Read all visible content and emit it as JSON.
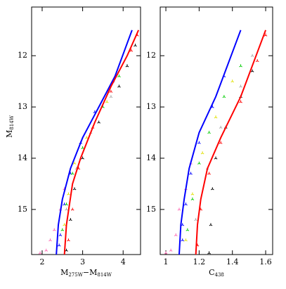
{
  "chart_data": [
    {
      "type": "scatter",
      "xlabel": [
        "M",
        "275W",
        "−M",
        "814W"
      ],
      "ylabel": [
        "M",
        "814W"
      ],
      "xlim": [
        1.74,
        4.43
      ],
      "ylim": [
        11.05,
        15.88
      ],
      "invert_y": true,
      "xticks": [
        2,
        3,
        4
      ],
      "yticks": [
        12,
        13,
        14,
        15
      ],
      "lines": [
        {
          "color": "#0000ff",
          "x": [
            2.35,
            2.4,
            2.5,
            2.7,
            3.0,
            3.4,
            3.8,
            4.22
          ],
          "y": [
            15.88,
            15.3,
            14.8,
            14.2,
            13.6,
            13.0,
            12.4,
            11.5
          ]
        },
        {
          "color": "#ff0000",
          "x": [
            2.55,
            2.6,
            2.75,
            2.95,
            3.3,
            3.7,
            4.1,
            4.38
          ],
          "y": [
            15.88,
            15.3,
            14.5,
            14.0,
            13.3,
            12.6,
            12.0,
            11.5
          ]
        }
      ],
      "series": [
        {
          "color": "#0000ff",
          "x": [
            2.45,
            2.55,
            2.7,
            2.95,
            3.3,
            3.75,
            2.42
          ],
          "y": [
            15.5,
            14.9,
            14.3,
            13.7,
            13.1,
            12.5,
            15.7
          ]
        },
        {
          "color": "#ff69b4",
          "x": [
            2.1,
            2.2,
            2.3,
            2.45,
            2.55,
            1.95
          ],
          "y": [
            15.8,
            15.6,
            15.4,
            15.0,
            14.6,
            15.85
          ]
        },
        {
          "color": "#00cc00",
          "x": [
            2.5,
            2.6,
            2.75,
            3.0,
            3.5,
            3.9
          ],
          "y": [
            15.4,
            14.9,
            14.3,
            13.8,
            13.0,
            12.4
          ]
        },
        {
          "color": "#e0e000",
          "x": [
            2.55,
            2.65,
            2.8,
            3.1,
            3.6
          ],
          "y": [
            15.3,
            14.7,
            14.1,
            13.6,
            12.9
          ]
        },
        {
          "color": "#aaaaaa",
          "x": [
            2.6,
            2.85,
            3.2,
            3.7,
            4.1
          ],
          "y": [
            15.0,
            14.2,
            13.5,
            12.8,
            12.2
          ]
        },
        {
          "color": "#ff0000",
          "x": [
            2.65,
            2.75,
            2.9,
            3.25,
            3.7,
            4.2,
            4.35
          ],
          "y": [
            15.6,
            15.0,
            14.2,
            13.4,
            12.7,
            11.9,
            11.6
          ]
        },
        {
          "color": "#000000",
          "x": [
            2.6,
            2.7,
            2.8,
            3.0,
            3.4,
            3.9,
            4.1,
            4.3
          ],
          "y": [
            15.8,
            15.2,
            14.6,
            14.0,
            13.3,
            12.6,
            12.2,
            11.8
          ]
        }
      ]
    },
    {
      "type": "scatter",
      "xlabel": [
        "C",
        "438"
      ],
      "xlim": [
        0.966,
        1.642
      ],
      "ylim": [
        11.05,
        15.88
      ],
      "invert_y": true,
      "xticks": [
        1,
        1.2,
        1.4,
        1.6
      ],
      "yticks": [
        12,
        13,
        14,
        15
      ],
      "lines": [
        {
          "color": "#0000ff",
          "x": [
            1.08,
            1.09,
            1.11,
            1.14,
            1.2,
            1.3,
            1.45
          ],
          "y": [
            15.88,
            15.3,
            14.8,
            14.2,
            13.5,
            12.8,
            11.5
          ]
        },
        {
          "color": "#ff0000",
          "x": [
            1.18,
            1.19,
            1.21,
            1.25,
            1.33,
            1.45,
            1.6
          ],
          "y": [
            15.88,
            15.3,
            14.8,
            14.2,
            13.6,
            12.8,
            11.5
          ]
        }
      ],
      "series": [
        {
          "color": "#0000ff",
          "x": [
            1.1,
            1.12,
            1.15,
            1.2,
            1.28,
            1.35,
            1.1
          ],
          "y": [
            15.6,
            14.9,
            14.3,
            13.7,
            13.0,
            12.4,
            15.3
          ]
        },
        {
          "color": "#ff69b4",
          "x": [
            1.03,
            1.06,
            1.08,
            1.12,
            1.15,
            1.0
          ],
          "y": [
            15.8,
            15.5,
            15.0,
            14.6,
            14.1,
            15.85
          ]
        },
        {
          "color": "#00cc00",
          "x": [
            1.13,
            1.16,
            1.2,
            1.26,
            1.35,
            1.45
          ],
          "y": [
            15.4,
            14.8,
            14.1,
            13.5,
            12.8,
            12.2
          ]
        },
        {
          "color": "#e0e000",
          "x": [
            1.12,
            1.16,
            1.22,
            1.3,
            1.4
          ],
          "y": [
            15.6,
            14.7,
            13.9,
            13.2,
            12.5
          ]
        },
        {
          "color": "#aaaaaa",
          "x": [
            1.18,
            1.25,
            1.33,
            1.45,
            1.52
          ],
          "y": [
            15.2,
            14.2,
            13.4,
            12.6,
            12.0
          ]
        },
        {
          "color": "#ff0000",
          "x": [
            1.19,
            1.21,
            1.26,
            1.33,
            1.45,
            1.55,
            1.6
          ],
          "y": [
            15.7,
            15.0,
            14.3,
            13.7,
            12.9,
            12.1,
            11.6
          ]
        },
        {
          "color": "#000000",
          "x": [
            1.26,
            1.27,
            1.28,
            1.3,
            1.36,
            1.45,
            1.52
          ],
          "y": [
            15.85,
            15.3,
            14.6,
            14.0,
            13.4,
            12.8,
            12.3
          ]
        }
      ]
    }
  ]
}
